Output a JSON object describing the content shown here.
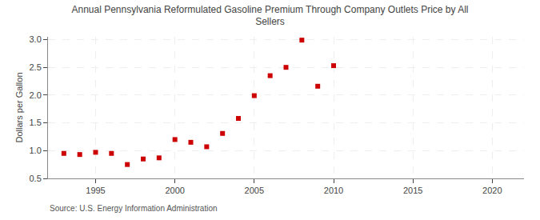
{
  "chart_data": {
    "type": "scatter",
    "title": "Annual Pennsylvania Reformulated Gasoline Premium Through Company Outlets Price by All\nSellers",
    "ylabel": "Dollars per Gallon",
    "source": "Source: U.S. Energy Information Administration",
    "color": "#cc0000",
    "marker": "square",
    "grid": true,
    "xlim": [
      1992,
      2022
    ],
    "ylim": [
      0.5,
      3.05
    ],
    "xticks": [
      1995,
      2000,
      2005,
      2010,
      2015,
      2020
    ],
    "yticks": [
      0.5,
      {
        "value": 1.0,
        "label": "1.0"
      },
      1.5,
      {
        "value": 2.0,
        "label": "2.0"
      },
      2.5,
      {
        "value": 3.0,
        "label": "3.0"
      }
    ],
    "x": [
      1993,
      1994,
      1995,
      1996,
      1997,
      1998,
      1999,
      2000,
      2001,
      2002,
      2003,
      2004,
      2005,
      2006,
      2007,
      2008,
      2009,
      2010
    ],
    "values": [
      0.95,
      0.93,
      0.97,
      0.95,
      0.75,
      0.85,
      0.87,
      1.2,
      1.15,
      1.07,
      1.31,
      1.58,
      1.99,
      2.35,
      2.5,
      2.99,
      2.16,
      2.53
    ]
  }
}
